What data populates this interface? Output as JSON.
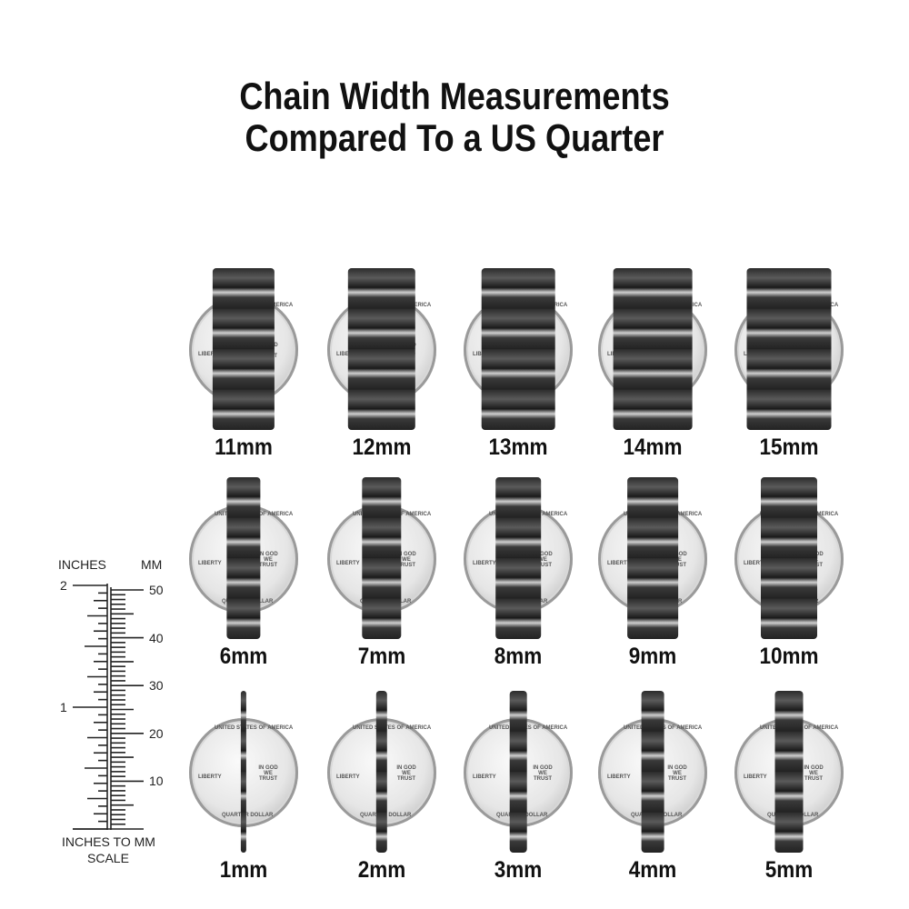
{
  "title": {
    "line1": "Chain Width Measurements",
    "line2": "Compared To a US Quarter"
  },
  "rows": [
    {
      "chains": [
        {
          "mm": 11,
          "label": "11mm"
        },
        {
          "mm": 12,
          "label": "12mm"
        },
        {
          "mm": 13,
          "label": "13mm"
        },
        {
          "mm": 14,
          "label": "14mm"
        },
        {
          "mm": 15,
          "label": "15mm"
        }
      ]
    },
    {
      "chains": [
        {
          "mm": 6,
          "label": "6mm"
        },
        {
          "mm": 7,
          "label": "7mm"
        },
        {
          "mm": 8,
          "label": "8mm"
        },
        {
          "mm": 9,
          "label": "9mm"
        },
        {
          "mm": 10,
          "label": "10mm"
        }
      ]
    },
    {
      "chains": [
        {
          "mm": 1,
          "label": "1mm"
        },
        {
          "mm": 2,
          "label": "2mm"
        },
        {
          "mm": 3,
          "label": "3mm"
        },
        {
          "mm": 4,
          "label": "4mm"
        },
        {
          "mm": 5,
          "label": "5mm"
        }
      ]
    }
  ],
  "coin": {
    "liberty": "LIBERTY",
    "motto": "IN GOD WE TRUST",
    "top": "UNITED STATES OF AMERICA",
    "bottom": "QUARTER DOLLAR"
  },
  "scale": {
    "inches_header": "INCHES",
    "mm_header": "MM",
    "inch_labels": [
      "1",
      "2"
    ],
    "mm_labels": [
      "10",
      "20",
      "30",
      "40",
      "50"
    ],
    "caption_line1": "INCHES TO MM",
    "caption_line2": "SCALE"
  },
  "colors": {
    "chain": "#2b2b2b",
    "coin": "#e6e6e6",
    "text": "#111111"
  }
}
